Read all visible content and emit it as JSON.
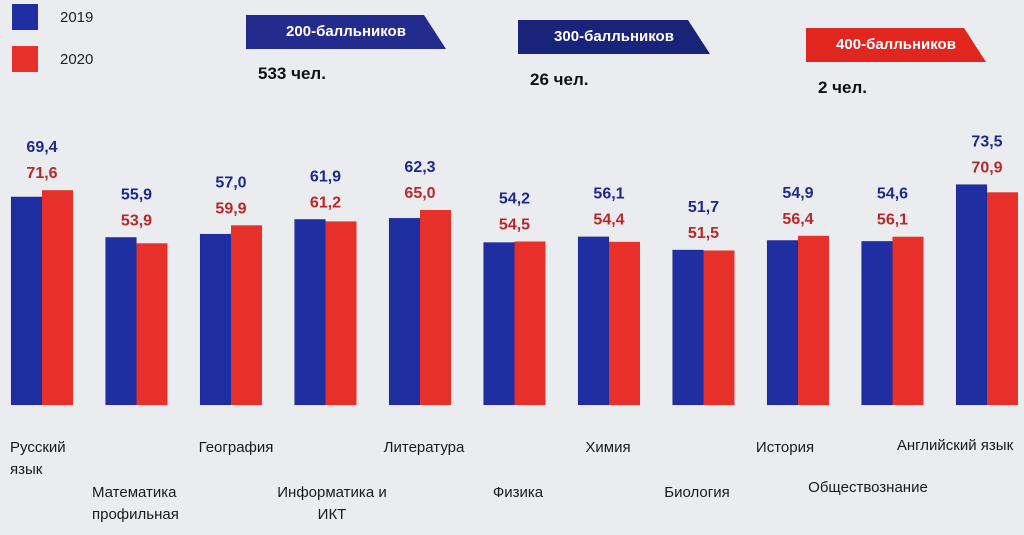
{
  "legend": [
    {
      "label": "2019",
      "color": "#1f2ea0"
    },
    {
      "label": "2020",
      "color": "#e8302a"
    }
  ],
  "badges": [
    {
      "label": "200-балльников",
      "count": "533 чел.",
      "color": "#232b8c"
    },
    {
      "label": "300-балльников",
      "count": "26 чел.",
      "color": "#1a237a"
    },
    {
      "label": "400-балльников",
      "count": "2 чел.",
      "color": "#e0261e"
    }
  ],
  "chart_data": {
    "type": "bar",
    "categories": [
      "Русский язык",
      "Математика профильная",
      "География",
      "Информатика и ИКТ",
      "Литература",
      "Физика",
      "Химия",
      "Биология",
      "История",
      "Обществознание",
      "Английский язык"
    ],
    "series": [
      {
        "name": "2019",
        "values": [
          69.4,
          55.9,
          57.0,
          61.9,
          62.3,
          54.2,
          56.1,
          51.7,
          54.9,
          54.6,
          73.5
        ],
        "labels": [
          "69,4",
          "55,9",
          "57,0",
          "61,9",
          "62,3",
          "54,2",
          "56,1",
          "51,7",
          "54,9",
          "54,6",
          "73,5"
        ]
      },
      {
        "name": "2020",
        "values": [
          71.6,
          53.9,
          59.9,
          61.2,
          65.0,
          54.5,
          54.4,
          51.5,
          56.4,
          56.1,
          70.9
        ],
        "labels": [
          "71,6",
          "53,9",
          "59,9",
          "61,2",
          "65,0",
          "54,5",
          "54,4",
          "51,5",
          "56,4",
          "56,1",
          "70,9"
        ]
      }
    ],
    "ylim": [
      0,
      75
    ],
    "grid": false,
    "legend_position": "top-left"
  }
}
